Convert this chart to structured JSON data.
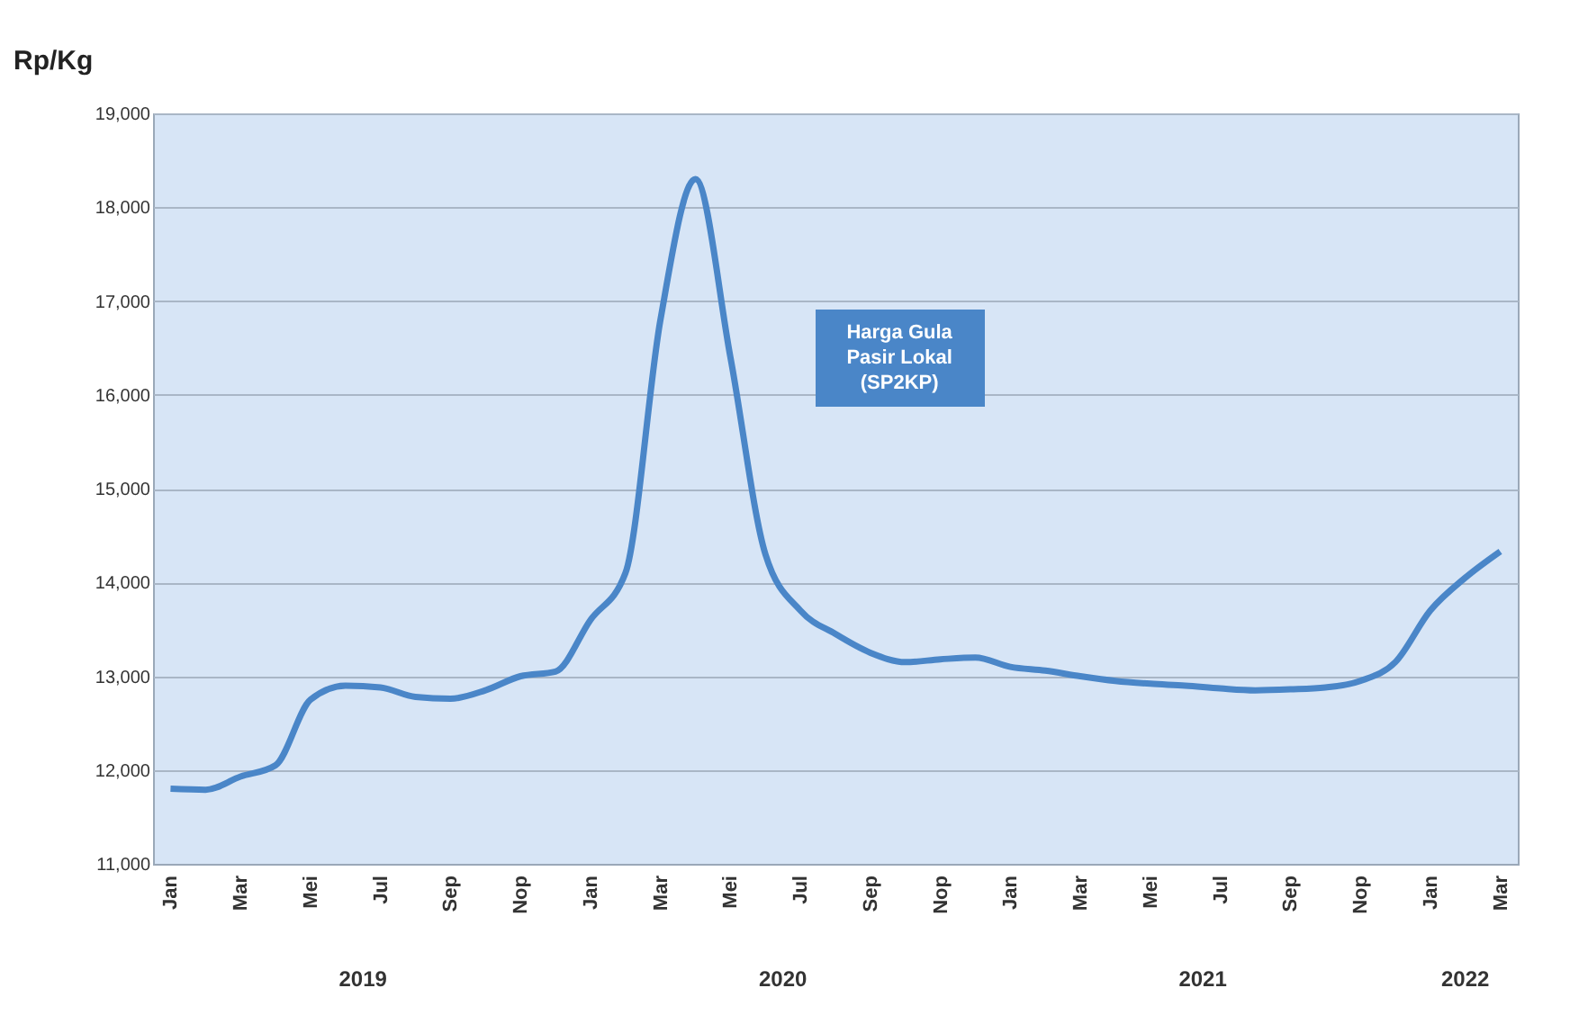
{
  "chart_data": {
    "type": "line",
    "ylabel": "Rp/Kg",
    "categories": [
      "Jan",
      null,
      "Mar",
      null,
      "Mei",
      null,
      "Jul",
      null,
      "Sep",
      null,
      "Nop",
      null,
      "Jan",
      null,
      "Mar",
      null,
      "Mei",
      null,
      "Jul",
      null,
      "Sep",
      null,
      "Nop",
      null,
      "Jan",
      null,
      "Mar",
      null,
      "Mei",
      null,
      "Jul",
      null,
      "Sep",
      null,
      "Nop",
      null,
      "Jan",
      null,
      "Mar"
    ],
    "annotations": [
      "2019",
      "2020",
      "2021",
      "2022"
    ],
    "series": [
      {
        "name": "Harga Gula Pasir Lokal (SP2KP)",
        "color": "#4a86c8",
        "values": [
          11800,
          11790,
          11930,
          12050,
          12750,
          12900,
          12880,
          12780,
          12760,
          12850,
          13000,
          13050,
          13600,
          14100,
          16800,
          18300,
          16400,
          14300,
          13700,
          13450,
          13250,
          13150,
          13180,
          13200,
          13100,
          13060,
          13000,
          12950,
          12920,
          12900,
          12870,
          12850,
          12860,
          12880,
          12950,
          13150,
          13700,
          14050,
          14330
        ]
      }
    ],
    "ylim": [
      11000,
      19000
    ],
    "yticks": [
      {
        "value": 11000,
        "label": "11,000"
      },
      {
        "value": 12000,
        "label": "12,000"
      },
      {
        "value": 13000,
        "label": "13,000"
      },
      {
        "value": 14000,
        "label": "14,000"
      },
      {
        "value": 15000,
        "label": "15,000"
      },
      {
        "value": 16000,
        "label": "16,000"
      },
      {
        "value": 17000,
        "label": "17,000"
      },
      {
        "value": 18000,
        "label": "18,000"
      },
      {
        "value": 19000,
        "label": "19,000"
      }
    ],
    "grid": "y",
    "legend": false,
    "marker": "none",
    "line_style": "solid"
  }
}
